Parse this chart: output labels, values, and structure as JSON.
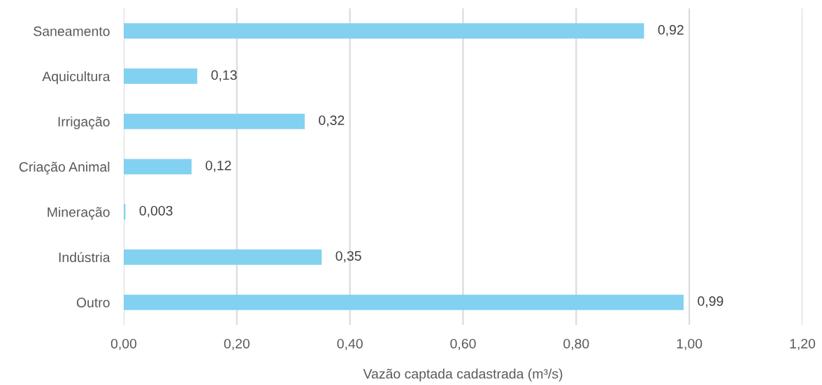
{
  "chart_data": {
    "type": "bar",
    "orientation": "horizontal",
    "categories": [
      "Saneamento",
      "Aquicultura",
      "Irrigação",
      "Criação Animal",
      "Mineração",
      "Indústria",
      "Outro"
    ],
    "values": [
      0.92,
      0.13,
      0.32,
      0.12,
      0.003,
      0.35,
      0.99
    ],
    "value_labels": [
      "0,92",
      "0,13",
      "0,32",
      "0,12",
      "0,003",
      "0,35",
      "0,99"
    ],
    "color": "#82d1f1",
    "xlabel": "Vazão captada cadastrada (m³/s)",
    "xlim": [
      0,
      1.2
    ],
    "xticks": [
      {
        "value": 0,
        "label": "0,00"
      },
      {
        "value": 0.2,
        "label": "0,20"
      },
      {
        "value": 0.4,
        "label": "0,40"
      },
      {
        "value": 0.6,
        "label": "0,60"
      },
      {
        "value": 0.8,
        "label": "0,80"
      },
      {
        "value": 1.0,
        "label": "1,00"
      },
      {
        "value": 1.2,
        "label": "1,20"
      }
    ],
    "grid": "x"
  }
}
